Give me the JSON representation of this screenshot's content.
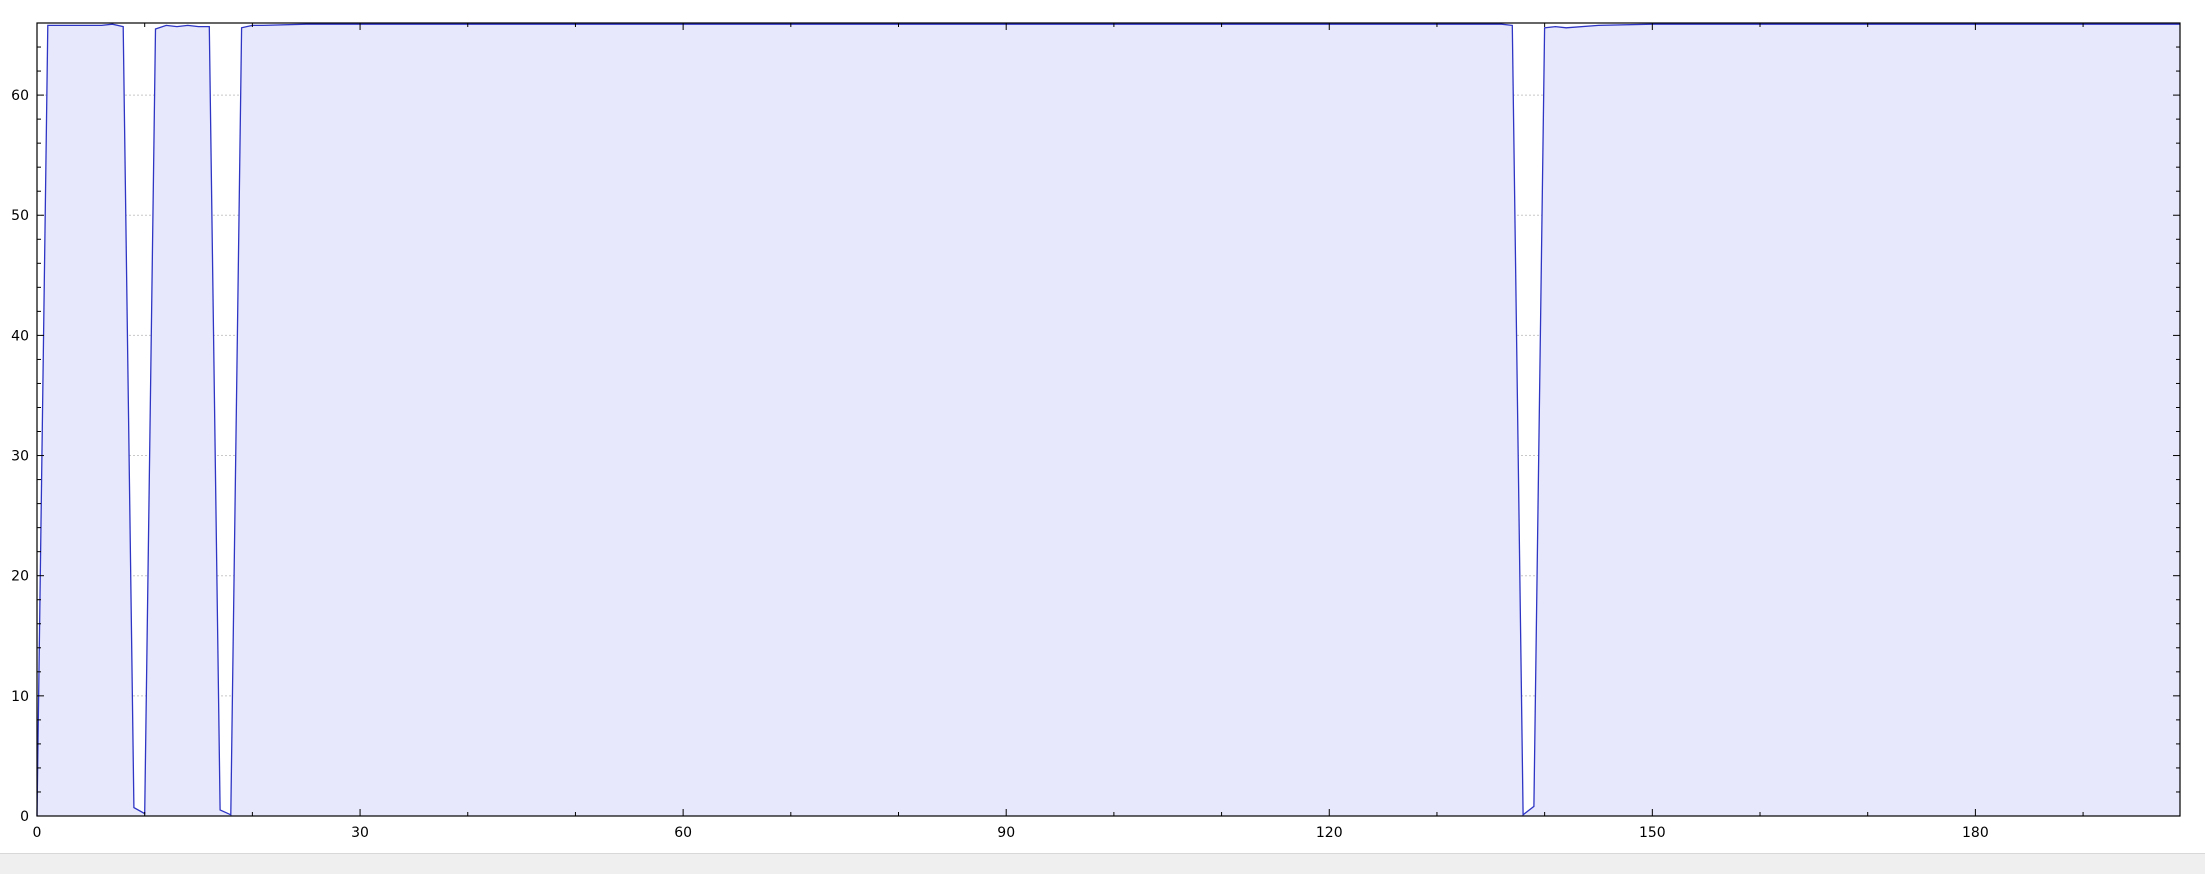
{
  "chart_data": {
    "type": "area",
    "title": "",
    "xlabel": "",
    "ylabel": "",
    "xlim": [
      0,
      199
    ],
    "ylim": [
      0,
      66
    ],
    "x_ticks": [
      0,
      30,
      60,
      90,
      120,
      150,
      180
    ],
    "x_tick_labels": [
      "0",
      "30",
      "60",
      "90",
      "120",
      "150",
      "180"
    ],
    "y_ticks": [
      0,
      10,
      20,
      30,
      40,
      50,
      60
    ],
    "y_tick_labels": [
      "0",
      "10",
      "20",
      "30",
      "40",
      "50",
      "60"
    ],
    "grid": true,
    "legend": "none",
    "colors": {
      "line": "#2e35c4",
      "fill": "#e8e8fc",
      "grid": "#c8c8c8",
      "axis": "#000000"
    },
    "series": [
      {
        "x": [
          0,
          1,
          3,
          6,
          7,
          8,
          9,
          10,
          11,
          12,
          13,
          14,
          15,
          16,
          17,
          18,
          19,
          20,
          21,
          25,
          30,
          60,
          90,
          120,
          136,
          137,
          138,
          139,
          140,
          141,
          142,
          145,
          150,
          199
        ],
        "y": [
          0,
          65.8,
          65.8,
          65.8,
          65.9,
          65.7,
          0.7,
          0.2,
          65.5,
          65.8,
          65.7,
          65.8,
          65.7,
          65.7,
          0.5,
          0.1,
          65.6,
          65.8,
          65.8,
          65.9,
          65.9,
          65.9,
          65.9,
          65.9,
          65.9,
          65.8,
          0.1,
          0.8,
          65.6,
          65.7,
          65.6,
          65.8,
          65.9,
          65.9
        ]
      }
    ]
  }
}
